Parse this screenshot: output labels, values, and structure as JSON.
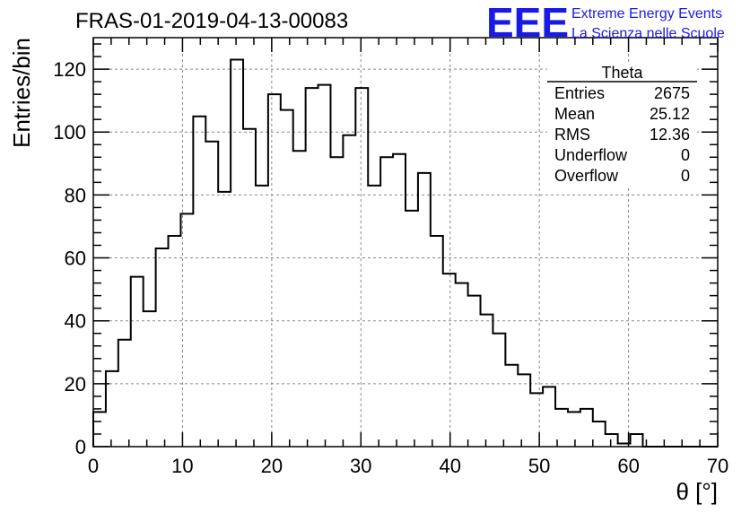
{
  "chart_data": {
    "type": "bar",
    "histogram": true,
    "title": "FRAS-01-2019-04-13-00083",
    "xlabel": "θ [°]",
    "ylabel": "Entries/bin",
    "xlim": [
      0,
      70
    ],
    "ylim": [
      0,
      130
    ],
    "xticks": [
      0,
      10,
      20,
      30,
      40,
      50,
      60,
      70
    ],
    "yticks": [
      0,
      20,
      40,
      60,
      80,
      100,
      120
    ],
    "grid": true,
    "bin_width": 1.4,
    "bin_start": 0,
    "values": [
      11,
      24,
      34,
      54,
      43,
      63,
      67,
      74,
      105,
      97,
      81,
      123,
      101,
      83,
      112,
      107,
      94,
      114,
      115,
      92,
      99,
      114,
      83,
      92,
      93,
      75,
      87,
      67,
      55,
      52,
      48,
      42,
      36,
      26,
      23,
      17,
      19,
      12,
      11,
      12,
      8,
      4,
      1,
      4,
      0,
      0,
      0,
      0,
      0,
      0
    ],
    "stats_box": {
      "title": "Theta",
      "rows": [
        {
          "label": "Entries",
          "value": "2675"
        },
        {
          "label": "Mean",
          "value": "25.12"
        },
        {
          "label": "RMS",
          "value": "12.36"
        },
        {
          "label": "Underflow",
          "value": "0"
        },
        {
          "label": "Overflow",
          "value": "0"
        }
      ]
    }
  },
  "logo": {
    "mark": "EEE",
    "line1": "Extreme Energy Events",
    "line2": "La Scienza nelle Scuole",
    "color": "#1a1ae6"
  }
}
